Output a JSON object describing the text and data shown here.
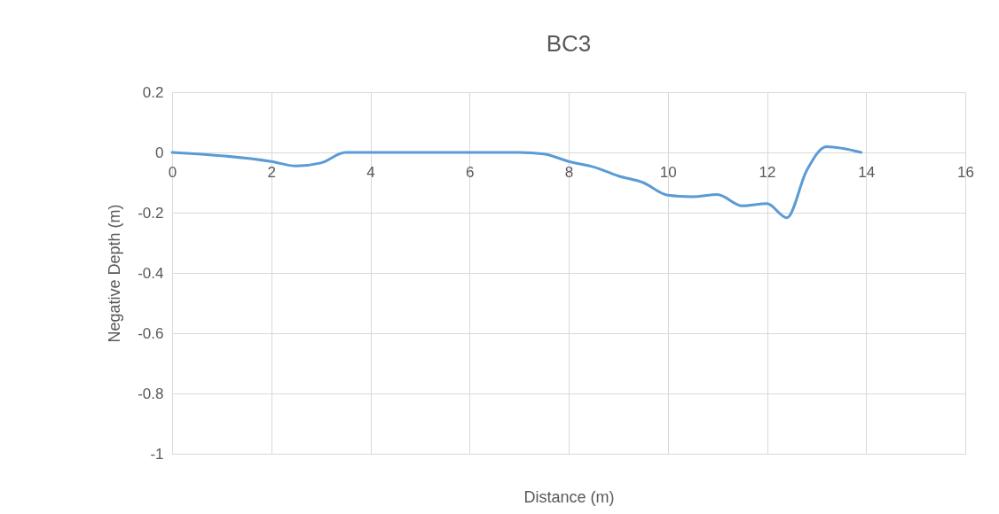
{
  "chart_data": {
    "type": "line",
    "title": "BC3",
    "xlabel": "Distance (m)",
    "ylabel": "Negative Depth (m)",
    "x": [
      0,
      2,
      2.5,
      3,
      3.5,
      4,
      7,
      7.5,
      8,
      8.5,
      9,
      9.5,
      10,
      10.5,
      11,
      11.5,
      12,
      12.4,
      12.8,
      13.2,
      13.9
    ],
    "series": [
      {
        "color": "#5b9bd5",
        "values": [
          0,
          -0.03,
          -0.045,
          -0.035,
          0,
          0,
          0,
          -0.005,
          -0.03,
          -0.048,
          -0.078,
          -0.1,
          -0.142,
          -0.147,
          -0.14,
          -0.177,
          -0.17,
          -0.217,
          -0.06,
          0.019,
          0
        ]
      }
    ],
    "xlim": [
      0,
      16
    ],
    "xticks": [
      0,
      2,
      4,
      6,
      8,
      10,
      12,
      14,
      16
    ],
    "ylim": [
      -1,
      0.2
    ],
    "yticks": [
      -1,
      -0.8,
      -0.6,
      -0.4,
      -0.2,
      0,
      0.2
    ],
    "grid": true,
    "legend": false,
    "marker": "none",
    "line_style": "solid"
  }
}
